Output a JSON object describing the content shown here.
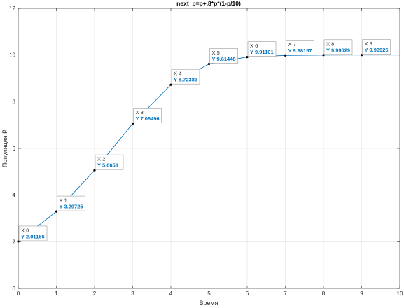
{
  "chart_data": {
    "type": "line",
    "title": "next_p=p+.8*p*(1-p/10)",
    "xlabel": "Время",
    "ylabel": "Популяция P",
    "xlim": [
      0,
      10
    ],
    "ylim": [
      0,
      12
    ],
    "xticks": [
      0,
      1,
      2,
      3,
      4,
      5,
      6,
      7,
      8,
      9,
      10
    ],
    "yticks": [
      0,
      2,
      4,
      6,
      8,
      10,
      12
    ],
    "grid": true,
    "series": [
      {
        "color": "#0072bd",
        "x": [
          0,
          1,
          2,
          3,
          4,
          5,
          6,
          7,
          8,
          9,
          10
        ],
        "values": [
          2.01166,
          3.29725,
          5.0653,
          7.06496,
          8.72383,
          9.61448,
          9.91101,
          9.98157,
          9.99629,
          9.99926,
          9.99985
        ]
      }
    ],
    "datatips": [
      {
        "x": 0,
        "y": 2.01166,
        "xtext": "X 0",
        "ytext": "Y 2.01166"
      },
      {
        "x": 1,
        "y": 3.29725,
        "xtext": "X 1",
        "ytext": "Y 3.29725"
      },
      {
        "x": 2,
        "y": 5.0653,
        "xtext": "X 2",
        "ytext": "Y 5.0653"
      },
      {
        "x": 3,
        "y": 7.06496,
        "xtext": "X 3",
        "ytext": "Y 7.06496"
      },
      {
        "x": 4,
        "y": 8.72383,
        "xtext": "X 4",
        "ytext": "Y 8.72383"
      },
      {
        "x": 5,
        "y": 9.61448,
        "xtext": "X 5",
        "ytext": "Y 9.61448"
      },
      {
        "x": 6,
        "y": 9.91101,
        "xtext": "X 6",
        "ytext": "Y 9.91101"
      },
      {
        "x": 7,
        "y": 9.98157,
        "xtext": "X 7",
        "ytext": "Y 9.98157"
      },
      {
        "x": 8,
        "y": 9.99629,
        "xtext": "X 8",
        "ytext": "Y 9.99629"
      },
      {
        "x": 9,
        "y": 9.99926,
        "xtext": "X 9",
        "ytext": "Y 9.99926"
      }
    ]
  }
}
